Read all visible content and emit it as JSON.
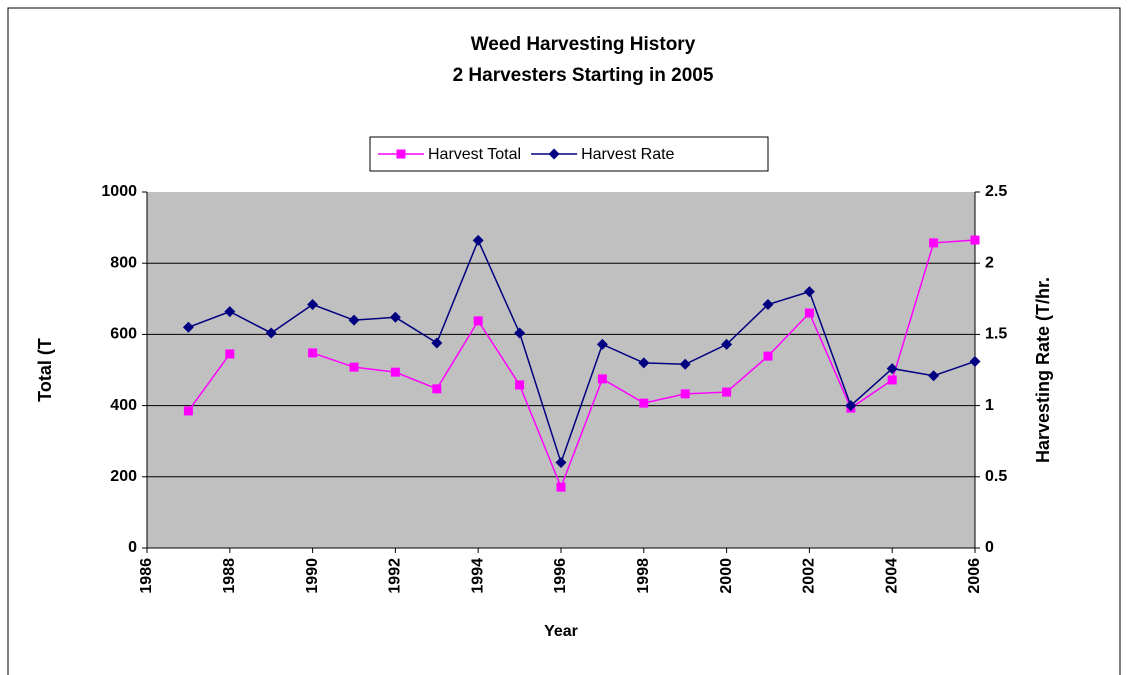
{
  "chart_data": {
    "type": "line",
    "title": "Weed Harvesting History",
    "subtitle": "2 Harvesters Starting in 2005",
    "xlabel": "Year",
    "ylabel": "Total (T",
    "y2label": "Harvesting Rate (T/hr.",
    "x": [
      1987,
      1988,
      1989,
      1990,
      1991,
      1992,
      1993,
      1994,
      1995,
      1996,
      1997,
      1998,
      1999,
      2000,
      2001,
      2002,
      2003,
      2004,
      2005,
      2006
    ],
    "series": [
      {
        "name": "Harvest Total",
        "color": "#ff00ff",
        "marker": "square",
        "values": [
          385,
          545,
          null,
          548,
          508,
          494,
          447,
          638,
          458,
          171,
          475,
          407,
          433,
          438,
          539,
          660,
          393,
          472,
          857,
          865
        ]
      },
      {
        "name": "Harvest Rate",
        "color": "#000080",
        "marker": "diamond",
        "axis": "y2",
        "values": [
          1.55,
          1.66,
          1.51,
          1.71,
          1.6,
          1.62,
          1.44,
          2.16,
          1.51,
          0.6,
          1.43,
          1.3,
          1.29,
          1.43,
          1.71,
          1.8,
          1.0,
          1.26,
          1.21,
          1.31
        ]
      }
    ],
    "xlim": [
      1986,
      2006
    ],
    "xticks": [
      1986,
      1988,
      1990,
      1992,
      1994,
      1996,
      1998,
      2000,
      2002,
      2004,
      2006
    ],
    "ylim": [
      0,
      1000
    ],
    "yticks": [
      0,
      200,
      400,
      600,
      800,
      1000
    ],
    "y2lim": [
      0,
      2.5
    ],
    "y2ticks": [
      0,
      0.5,
      1,
      1.5,
      2,
      2.5
    ],
    "grid": true,
    "legend": "top",
    "plot_background": "#c0c0c0"
  }
}
